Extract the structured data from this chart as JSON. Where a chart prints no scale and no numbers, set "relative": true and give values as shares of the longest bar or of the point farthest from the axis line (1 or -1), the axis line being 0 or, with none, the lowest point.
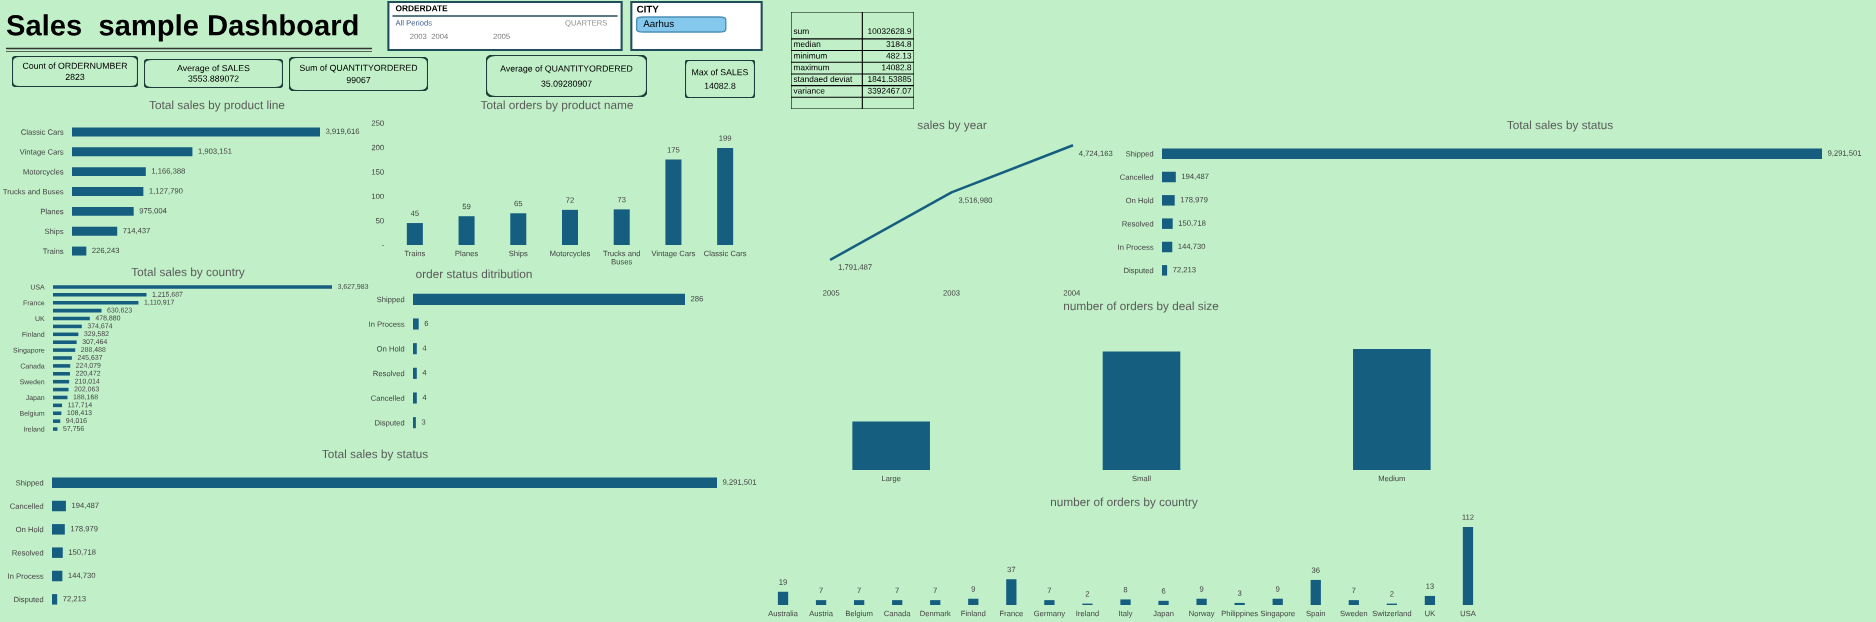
{
  "chart_data": [
    {
      "type": "other",
      "title": "Sales  sample Dashboard"
    },
    {
      "type": "other",
      "title": "Count of ORDERNUMBER",
      "annotations": [
        "2823"
      ]
    },
    {
      "type": "other",
      "title": "Average of SALES",
      "annotations": [
        "3553.889072"
      ]
    },
    {
      "type": "other",
      "title": "Sum of QUANTITYORDERED",
      "annotations": [
        "99067"
      ]
    },
    {
      "type": "other",
      "title": "Average of QUANTITYORDERED",
      "annotations": [
        "35.09280907"
      ]
    },
    {
      "type": "other",
      "title": "Max of SALES",
      "annotations": [
        "14082.8"
      ]
    },
    {
      "type": "other",
      "title": "ORDERDATE",
      "annotations": [
        "All Periods",
        "QUARTERS",
        "2003",
        "2004",
        "2005"
      ]
    },
    {
      "type": "other",
      "title": "CITY",
      "annotations": [
        "Aarhus"
      ]
    },
    {
      "type": "other",
      "categories": [
        "sum",
        "median",
        "minimum",
        "maximum",
        "standaed deviat",
        "variance"
      ],
      "values": [
        10032628.9,
        3184.8,
        482.13,
        14082.8,
        1841.53885,
        3392467.07
      ],
      "data_labels": true
    },
    {
      "type": "bar",
      "orientation": "horizontal",
      "title": "Total sales by product line",
      "categories": [
        "Classic Cars",
        "Vintage Cars",
        "Motorcycles",
        "Trucks and Buses",
        "Planes",
        "Ships",
        "Trains"
      ],
      "values": [
        3919616,
        1903151,
        1166388,
        1127790,
        975004,
        714437,
        226243
      ],
      "color": "#165e80",
      "value_labels": [
        "3,919,616",
        "1,903,151",
        "1,166,388",
        "1,127,790",
        "975,004",
        "714,437",
        "226,243"
      ]
    },
    {
      "type": "bar",
      "title": "Total orders by product name",
      "categories": [
        "Trains",
        "Planes",
        "Ships",
        "Motorcycles",
        "Trucks and Buses",
        "Vintage Cars",
        "Classic Cars"
      ],
      "values": [
        45,
        59,
        65,
        72,
        73,
        175,
        199
      ],
      "color": "#165e80",
      "data_labels": true,
      "ylim": [
        0,
        250
      ],
      "yticks": [
        {
          "value": 0,
          "label": "-"
        },
        50,
        100,
        150,
        200,
        250
      ]
    },
    {
      "type": "line",
      "title": "sales by year",
      "categories": [
        "2005",
        "2003",
        "2004"
      ],
      "values": [
        1791487,
        3516980,
        4724163
      ],
      "color": "#165e80",
      "value_labels": [
        "1,791,487",
        "3,516,980",
        "4,724,163"
      ]
    },
    {
      "type": "bar",
      "orientation": "horizontal",
      "title": "Total sales by status",
      "categories": [
        "Shipped",
        "Cancelled",
        "On Hold",
        "Resolved",
        "In Process",
        "Disputed"
      ],
      "values": [
        9291501,
        194487,
        178979,
        150718,
        144730,
        72213
      ],
      "color": "#165e80",
      "value_labels": [
        "9,291,501",
        "194,487",
        "178,979",
        "150,718",
        "144,730",
        "72,213"
      ]
    },
    {
      "type": "bar",
      "orientation": "horizontal",
      "title": "Total sales by country",
      "categories": [
        "USA",
        null,
        "France",
        null,
        "UK",
        null,
        "Finland",
        null,
        "Singapore",
        null,
        "Canada",
        null,
        "Sweden",
        null,
        "Japan",
        null,
        "Belgium",
        null,
        "Ireland"
      ],
      "values": [
        3627983,
        1215687,
        1110917,
        630623,
        478880,
        374674,
        329582,
        307464,
        288488,
        245637,
        224079,
        220472,
        210014,
        202063,
        188168,
        117714,
        108413,
        94016,
        57756
      ],
      "color": "#165e80",
      "value_labels": [
        "3,627,983",
        "1,215,687",
        "1,110,917",
        "630,623",
        "478,880",
        "374,674",
        "329,582",
        "307,464",
        "288,488",
        "245,637",
        "224,079",
        "220,472",
        "210,014",
        "202,063",
        "188,168",
        "117,714",
        "108,413",
        "94,016",
        "57,756"
      ]
    },
    {
      "type": "bar",
      "orientation": "horizontal",
      "title": "order status ditribution",
      "categories": [
        "Shipped",
        "In Process",
        "On Hold",
        "Resolved",
        "Cancelled",
        "Disputed"
      ],
      "values": [
        286,
        6,
        4,
        4,
        4,
        3
      ],
      "color": "#165e80",
      "data_labels": true
    },
    {
      "type": "bar",
      "title": "number of orders by deal size",
      "categories": [
        "Large",
        "Small",
        "Medium"
      ],
      "values": [
        0.4,
        0.98,
        1
      ],
      "color": "#165e80",
      "relative": true
    },
    {
      "type": "bar",
      "orientation": "horizontal",
      "title": "Total sales by status",
      "categories": [
        "Shipped",
        "Cancelled",
        "On Hold",
        "Resolved",
        "In Process",
        "Disputed"
      ],
      "values": [
        9291501,
        194487,
        178979,
        150718,
        144730,
        72213
      ],
      "color": "#165e80",
      "value_labels": [
        "9,291,501",
        "194,487",
        "178,979",
        "150,718",
        "144,730",
        "72,213"
      ]
    },
    {
      "type": "bar",
      "title": "number of orders by country",
      "categories": [
        "Australia",
        "Austria",
        "Belgium",
        "Canada",
        "Denmark",
        "Finland",
        "France",
        "Germany",
        "Ireland",
        "Italy",
        "Japan",
        "Norway",
        "Philippines",
        "Singapore",
        "Spain",
        "Sweden",
        "Switzerland",
        "UK",
        "USA"
      ],
      "values": [
        19,
        7,
        7,
        7,
        7,
        9,
        37,
        7,
        2,
        8,
        6,
        9,
        3,
        9,
        36,
        7,
        2,
        13,
        112
      ],
      "color": "#165e80",
      "data_labels": true
    }
  ]
}
